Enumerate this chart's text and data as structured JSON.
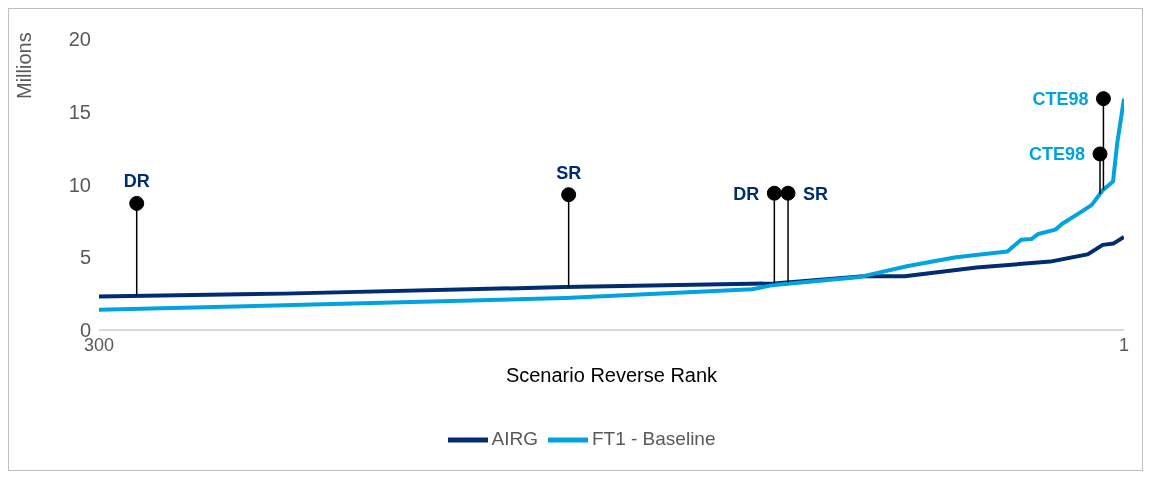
{
  "chart_data": {
    "type": "line",
    "xlabel": "Scenario Reverse Rank",
    "ylabel": "Millions",
    "xlim": [
      300,
      1
    ],
    "xticks": [
      300,
      1
    ],
    "ylim": [
      0,
      20
    ],
    "yticks": [
      0,
      5,
      10,
      15,
      20
    ],
    "grid": false,
    "legend": "bottom",
    "series": [
      {
        "name": "AIRG",
        "color": "#002d72",
        "x": [
          300,
          246,
          164,
          103,
          77,
          65,
          44,
          22.5,
          11.6,
          7.2,
          4,
          1
        ],
        "values": [
          2.3,
          2.5,
          2.95,
          3.2,
          3.7,
          3.7,
          4.3,
          4.7,
          5.2,
          5.85,
          5.95,
          6.4
        ]
      },
      {
        "name": "FT1 - Baseline",
        "color": "#00a3e0",
        "x": [
          300,
          246,
          164,
          109.5,
          103,
          78,
          64,
          50,
          35,
          31,
          28,
          26,
          21,
          19,
          13.6,
          10.4,
          7.2,
          4.2,
          3,
          1
        ],
        "values": [
          1.4,
          1.7,
          2.2,
          2.8,
          3.1,
          3.65,
          4.4,
          5.0,
          5.4,
          6.2,
          6.25,
          6.6,
          6.9,
          7.3,
          8.1,
          8.6,
          9.6,
          10.2,
          12.8,
          15.9
        ]
      }
    ],
    "annotations": [
      {
        "text": "DR",
        "x": 289,
        "y": 8.7
      },
      {
        "text": "SR",
        "x": 163,
        "y": 9.3
      },
      {
        "text": "DR",
        "x": 103,
        "y": 9.4
      },
      {
        "text": "SR",
        "x": 99,
        "y": 9.4
      },
      {
        "text": "CTE98",
        "x": 7,
        "y": 15.9
      },
      {
        "text": "CTE98",
        "x": 8,
        "y": 12.1
      }
    ]
  }
}
